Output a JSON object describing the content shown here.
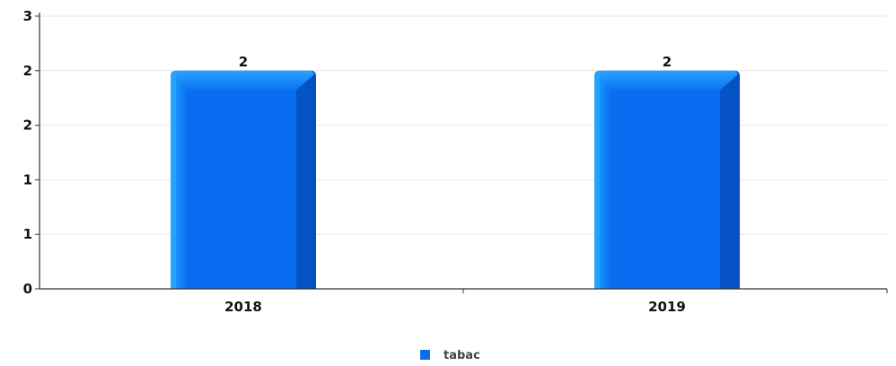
{
  "chart_data": {
    "type": "bar",
    "categories": [
      "2018",
      "2019"
    ],
    "series": [
      {
        "name": "tabac",
        "values": [
          2,
          2
        ],
        "color": "#0a6cf0"
      }
    ],
    "value_labels": [
      "2",
      "2"
    ],
    "y_ticks": [
      {
        "value": 0,
        "label": "0"
      },
      {
        "value": 0.5,
        "label": "1"
      },
      {
        "value": 1,
        "label": "1"
      },
      {
        "value": 1.5,
        "label": "2"
      },
      {
        "value": 2,
        "label": "2"
      },
      {
        "value": 2.5,
        "label": "3"
      }
    ],
    "ylim": [
      0,
      2.5
    ],
    "title": "",
    "xlabel": "",
    "ylabel": "",
    "grid": true,
    "legend": "bottom-center"
  }
}
